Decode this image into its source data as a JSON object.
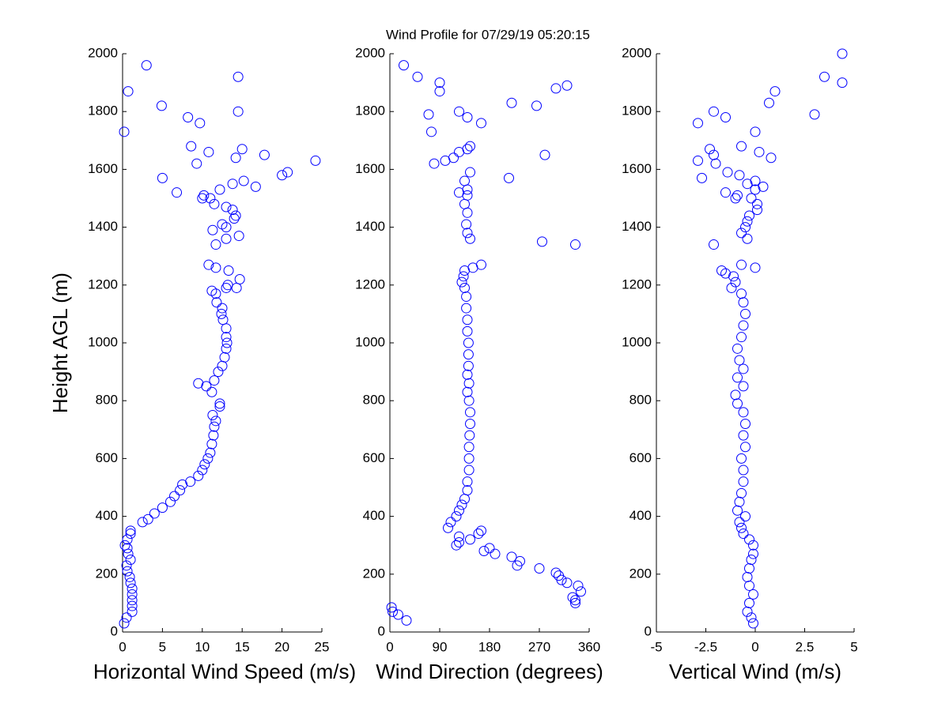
{
  "chart_data": [
    {
      "type": "scatter",
      "title": "Wind Profile for  07/29/19 05:20:15",
      "ylabel": "Height AGL (m)",
      "xlabel": "Horizontal Wind Speed (m/s)",
      "color": "#0000ff",
      "xlim": [
        0,
        25
      ],
      "xticks": [
        0,
        5,
        10,
        15,
        20,
        25
      ],
      "ylim": [
        0,
        2000
      ],
      "yticks": [
        0,
        200,
        400,
        600,
        800,
        1000,
        1200,
        1400,
        1600,
        1800,
        2000
      ],
      "x": [
        0.2,
        0.5,
        1.2,
        1.2,
        1.2,
        1.2,
        1.2,
        1,
        0.9,
        0.6,
        0.5,
        1,
        0.7,
        0.6,
        0.3,
        0.6,
        1,
        1,
        2.5,
        3.2,
        4,
        5,
        6,
        6.5,
        7.2,
        7.5,
        8.5,
        9.5,
        10,
        10.3,
        10.7,
        11,
        11.2,
        11.4,
        11.5,
        11.7,
        11.3,
        12.2,
        12.2,
        11.2,
        10.5,
        9.5,
        11.5,
        12,
        12.5,
        12.8,
        13,
        13.1,
        13,
        13,
        12.6,
        12.4,
        12.5,
        11.8,
        11.7,
        11.2,
        13,
        13.2,
        14.3,
        14.7,
        13.3,
        11.7,
        10.8,
        11.7,
        13,
        11.3,
        13,
        12.5,
        14,
        14.2,
        13.8,
        13,
        11.5,
        11,
        10,
        10.2,
        12.2,
        13.8,
        15.2,
        16.7,
        5,
        20,
        20.7,
        24.2,
        9.3,
        14.2,
        17.8,
        15,
        10.8,
        8.6,
        6.8,
        0.2,
        9.7,
        8.2,
        14.5,
        4.9,
        0.7,
        14.5,
        3,
        14.6
      ],
      "y": [
        30,
        50,
        70,
        90,
        110,
        130,
        150,
        170,
        190,
        210,
        230,
        250,
        270,
        290,
        300,
        320,
        340,
        350,
        380,
        390,
        410,
        430,
        450,
        470,
        490,
        510,
        520,
        540,
        560,
        580,
        600,
        620,
        650,
        680,
        710,
        730,
        750,
        780,
        790,
        830,
        850,
        860,
        870,
        900,
        920,
        950,
        980,
        1000,
        1020,
        1050,
        1080,
        1100,
        1120,
        1140,
        1170,
        1180,
        1190,
        1200,
        1190,
        1220,
        1250,
        1260,
        1270,
        1340,
        1360,
        1390,
        1400,
        1410,
        1430,
        1440,
        1460,
        1470,
        1480,
        1500,
        1500,
        1510,
        1530,
        1550,
        1560,
        1540,
        1570,
        1580,
        1590,
        1630,
        1620,
        1640,
        1650,
        1670,
        1660,
        1680,
        1520,
        1730,
        1760,
        1780,
        1800,
        1820,
        1870,
        1920,
        1960,
        1370
      ]
    },
    {
      "type": "scatter",
      "xlabel": "Wind Direction (degrees)",
      "color": "#0000ff",
      "xlim": [
        0,
        360
      ],
      "xticks": [
        0,
        90,
        180,
        270,
        360
      ],
      "ylim": [
        0,
        2000
      ],
      "yticks": [
        0,
        200,
        400,
        600,
        800,
        1000,
        1200,
        1400,
        1600,
        1800,
        2000
      ],
      "x": [
        30,
        15,
        5,
        3,
        335,
        335,
        330,
        345,
        340,
        320,
        310,
        305,
        300,
        270,
        230,
        235,
        220,
        190,
        180,
        170,
        165,
        160,
        145,
        125,
        120,
        125,
        105,
        110,
        120,
        125,
        130,
        135,
        140,
        140,
        143,
        143,
        143,
        144,
        145,
        145,
        143,
        140,
        143,
        140,
        142,
        142,
        142,
        140,
        140,
        138,
        138,
        135,
        130,
        133,
        135,
        150,
        165,
        145,
        140,
        138,
        140,
        135,
        140,
        125,
        140,
        135,
        145,
        215,
        80,
        100,
        115,
        125,
        145,
        140,
        280,
        335,
        275,
        75,
        70,
        125,
        140,
        165,
        220,
        265,
        300,
        320,
        90,
        90,
        50,
        25
      ],
      "y": [
        40,
        60,
        70,
        85,
        100,
        110,
        120,
        140,
        160,
        170,
        180,
        195,
        205,
        220,
        230,
        245,
        260,
        270,
        290,
        280,
        350,
        340,
        320,
        330,
        300,
        310,
        360,
        380,
        400,
        420,
        440,
        460,
        490,
        520,
        560,
        600,
        640,
        680,
        720,
        760,
        800,
        830,
        860,
        890,
        920,
        960,
        1000,
        1040,
        1080,
        1120,
        1160,
        1190,
        1210,
        1230,
        1250,
        1260,
        1270,
        1360,
        1380,
        1410,
        1450,
        1480,
        1510,
        1520,
        1530,
        1560,
        1590,
        1570,
        1620,
        1630,
        1640,
        1660,
        1680,
        1670,
        1650,
        1340,
        1350,
        1730,
        1790,
        1800,
        1780,
        1760,
        1830,
        1820,
        1880,
        1890,
        1870,
        1900,
        1920,
        1960
      ]
    },
    {
      "type": "scatter",
      "xlabel": "Vertical Wind (m/s)",
      "color": "#0000ff",
      "xlim": [
        -5,
        5
      ],
      "xticks": [
        -5,
        -2.5,
        0,
        2.5,
        5
      ],
      "ylim": [
        0,
        2000
      ],
      "yticks": [
        0,
        200,
        400,
        600,
        800,
        1000,
        1200,
        1400,
        1600,
        1800,
        2000
      ],
      "x": [
        -0.1,
        -0.2,
        -0.4,
        -0.3,
        -0.1,
        -0.3,
        -0.4,
        -0.3,
        -0.2,
        -0.1,
        -0.1,
        -0.3,
        -0.6,
        -0.7,
        -0.8,
        -0.5,
        -0.9,
        -0.8,
        -0.7,
        -0.6,
        -0.6,
        -0.7,
        -0.5,
        -0.6,
        -0.5,
        -0.6,
        -0.9,
        -1,
        -0.6,
        -0.9,
        -0.6,
        -0.8,
        -0.9,
        -0.7,
        -0.6,
        -0.5,
        -0.6,
        -0.7,
        -1.2,
        -1,
        -1.1,
        -1.5,
        -1.7,
        -0.7,
        0,
        -2.1,
        -0.4,
        -0.7,
        -0.5,
        -0.4,
        -0.3,
        0.1,
        0.1,
        -0.2,
        -0.9,
        -1,
        -1.5,
        0,
        0.4,
        -0.4,
        0,
        -0.8,
        -1.4,
        -2.7,
        -2.9,
        -2,
        -2.3,
        -2.1,
        -0.7,
        0.2,
        0.8,
        0,
        -2.9,
        -1.5,
        -2.1,
        0.7,
        1,
        3,
        4.4,
        3.5,
        4.4
      ],
      "y": [
        30,
        50,
        70,
        100,
        130,
        160,
        190,
        220,
        250,
        270,
        300,
        320,
        340,
        360,
        380,
        400,
        420,
        450,
        480,
        520,
        560,
        600,
        640,
        680,
        720,
        760,
        790,
        820,
        850,
        880,
        910,
        940,
        980,
        1020,
        1060,
        1100,
        1140,
        1170,
        1190,
        1210,
        1230,
        1240,
        1250,
        1270,
        1260,
        1340,
        1360,
        1380,
        1400,
        1420,
        1440,
        1460,
        1480,
        1500,
        1510,
        1500,
        1520,
        1530,
        1540,
        1550,
        1560,
        1580,
        1590,
        1570,
        1630,
        1620,
        1670,
        1650,
        1680,
        1660,
        1640,
        1730,
        1760,
        1780,
        1800,
        1830,
        1870,
        1790,
        1900,
        1920,
        2000
      ]
    }
  ]
}
